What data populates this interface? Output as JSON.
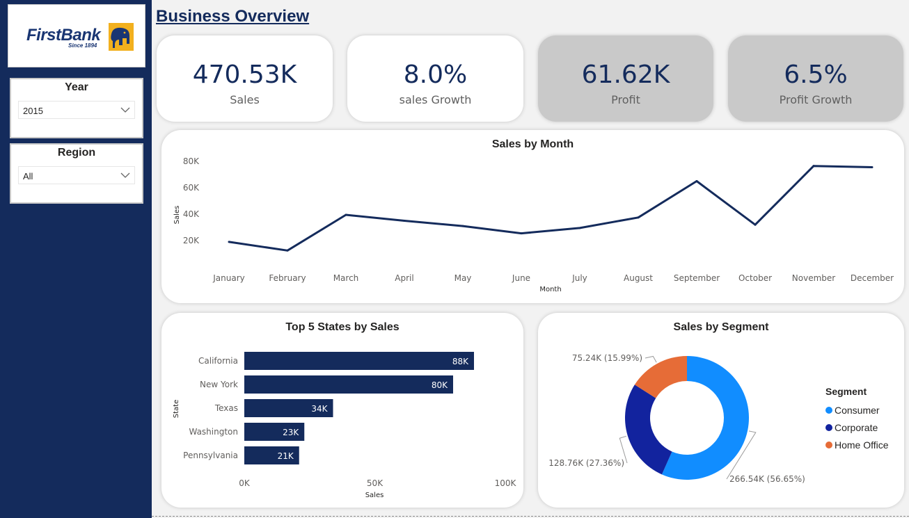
{
  "brand": {
    "name": "FirstBank",
    "since": "Since 1894"
  },
  "filters": {
    "year": {
      "label": "Year",
      "value": "2015"
    },
    "region": {
      "label": "Region",
      "value": "All"
    }
  },
  "page_title": "Business Overview",
  "kpis": [
    {
      "value": "470.53K",
      "label": "Sales"
    },
    {
      "value": "8.0%",
      "label": "sales Growth"
    },
    {
      "value": "61.62K",
      "label": "Profit"
    },
    {
      "value": "6.5%",
      "label": "Profit Growth"
    }
  ],
  "colors": {
    "navy": "#142b5c",
    "consumer": "#118dff",
    "corporate": "#12239e",
    "home_office": "#e66c37",
    "gray_card": "#c9c9c9"
  },
  "chart_data": [
    {
      "type": "line",
      "title": "Sales by Month",
      "xlabel": "Month",
      "ylabel": "Sales",
      "categories": [
        "January",
        "February",
        "March",
        "April",
        "May",
        "June",
        "July",
        "August",
        "September",
        "October",
        "November",
        "December"
      ],
      "values": [
        19000,
        12500,
        39500,
        35000,
        31000,
        25500,
        29500,
        37500,
        65000,
        32000,
        76500,
        75500
      ],
      "ylim": [
        10000,
        80000
      ],
      "yticks": [
        20000,
        40000,
        60000,
        80000
      ],
      "ytick_labels": [
        "20K",
        "40K",
        "60K",
        "80K"
      ]
    },
    {
      "type": "bar",
      "orientation": "horizontal",
      "title": "Top 5 States by Sales",
      "xlabel": "Sales",
      "ylabel": "State",
      "categories": [
        "California",
        "New York",
        "Texas",
        "Washington",
        "Pennsylvania"
      ],
      "values": [
        88000,
        80000,
        34000,
        23000,
        21000
      ],
      "data_labels": [
        "88K",
        "80K",
        "34K",
        "23K",
        "21K"
      ],
      "xlim": [
        0,
        100000
      ],
      "xticks": [
        0,
        50000,
        100000
      ],
      "xtick_labels": [
        "0K",
        "50K",
        "100K"
      ]
    },
    {
      "type": "pie",
      "subtype": "donut",
      "title": "Sales by Segment",
      "legend_title": "Segment",
      "categories": [
        "Consumer",
        "Corporate",
        "Home Office"
      ],
      "values": [
        266540,
        128760,
        75240
      ],
      "data_labels": [
        "266.54K (56.65%)",
        "128.76K (27.36%)",
        "75.24K (15.99%)"
      ],
      "colors": [
        "#118dff",
        "#12239e",
        "#e66c37"
      ]
    }
  ]
}
